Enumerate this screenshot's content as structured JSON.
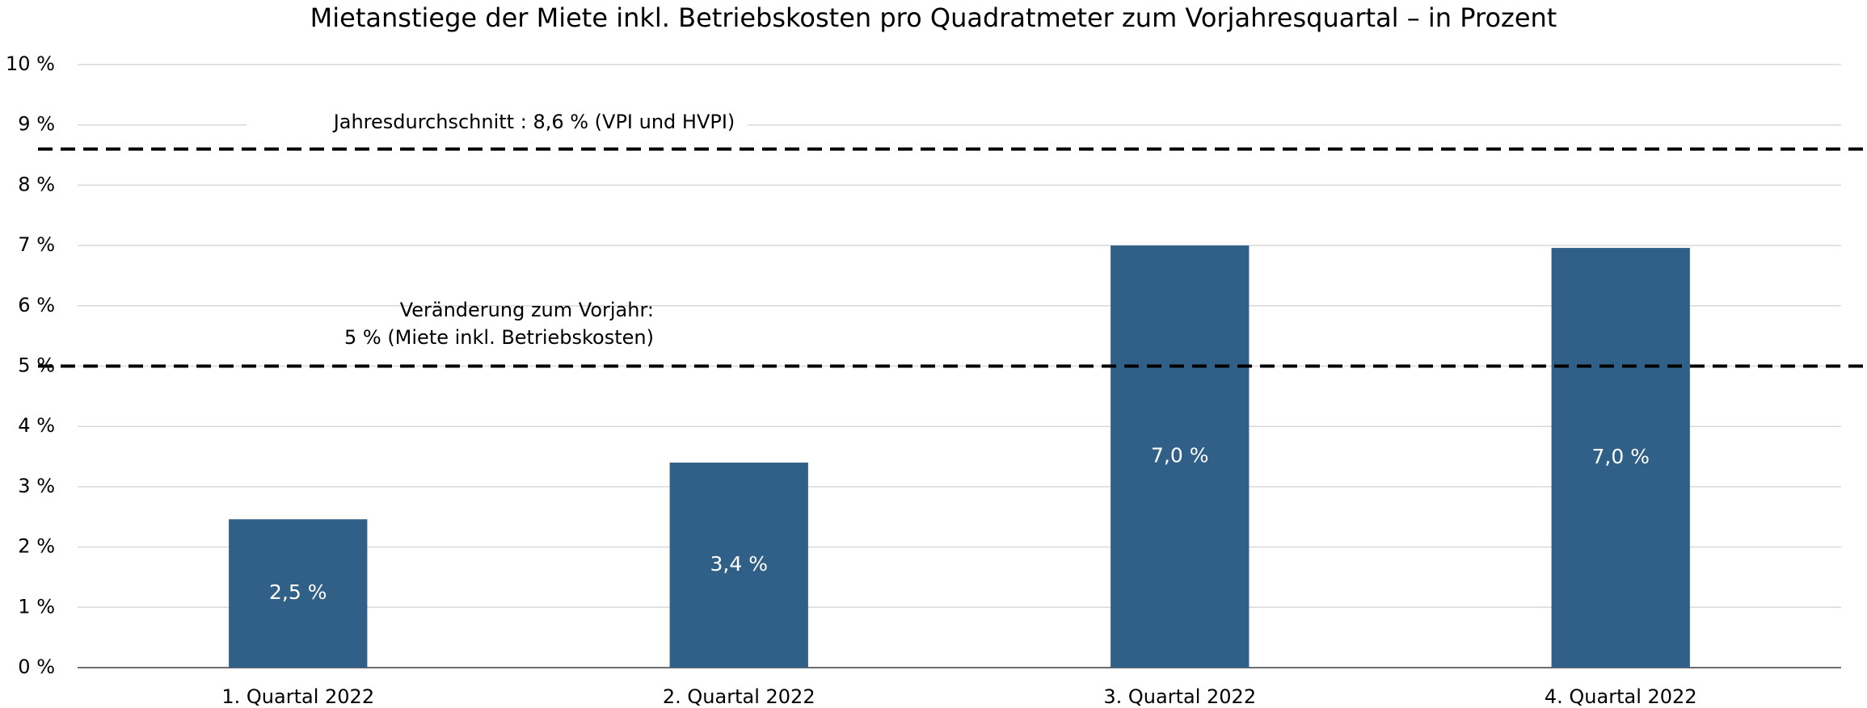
{
  "chart_data": {
    "type": "bar",
    "title": "Mietanstiege der Miete inkl. Betriebskosten pro Quadratmeter zum Vorjahresquartal – in Prozent",
    "categories": [
      "1. Quartal 2022",
      "2. Quartal 2022",
      "3. Quartal 2022",
      "4. Quartal 2022"
    ],
    "values": [
      2.46,
      3.4,
      7.0,
      6.96
    ],
    "value_labels": [
      "2,5 %",
      "3,4 %",
      "7,0 %",
      "7,0 %"
    ],
    "color": "#305f88",
    "ylim": [
      0,
      10
    ],
    "yticks": [
      {
        "value": 0,
        "label": "0 %"
      },
      {
        "value": 1,
        "label": "1 %"
      },
      {
        "value": 2,
        "label": "2 %"
      },
      {
        "value": 3,
        "label": "3 %"
      },
      {
        "value": 4,
        "label": "4 %"
      },
      {
        "value": 5,
        "label": "5 %"
      },
      {
        "value": 6,
        "label": "6 %"
      },
      {
        "value": 7,
        "label": "7 %"
      },
      {
        "value": 8,
        "label": "8 %"
      },
      {
        "value": 9,
        "label": "9 %"
      },
      {
        "value": 10,
        "label": "10 %"
      }
    ],
    "grid": true,
    "reference_lines": [
      {
        "value": 8.6,
        "labels": [
          "Jahresdurchschnitt : 8,6 % (VPI und HVPI)"
        ]
      },
      {
        "value": 5,
        "labels": [
          "Veränderung zum Vorjahr:",
          "5 % (Miete inkl. Betriebskosten)"
        ]
      }
    ]
  }
}
